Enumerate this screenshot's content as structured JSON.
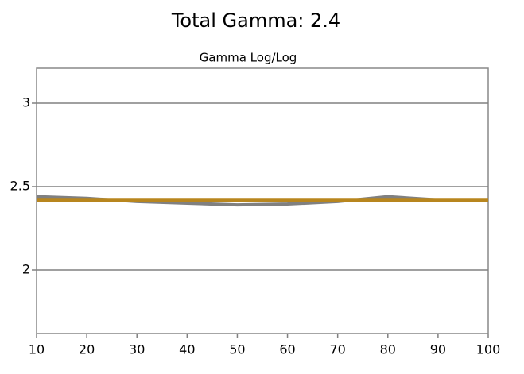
{
  "chart_data": {
    "type": "line",
    "title": "Total Gamma: 2.4",
    "subtitle": "Gamma Log/Log",
    "x": [
      10,
      20,
      30,
      40,
      50,
      60,
      70,
      80,
      90,
      100
    ],
    "series": [
      {
        "color": "#808080",
        "values": [
          2.44,
          2.43,
          2.41,
          2.4,
          2.39,
          2.395,
          2.41,
          2.44,
          2.42,
          2.42
        ]
      },
      {
        "color": "#b8861e",
        "values": [
          2.42,
          2.42,
          2.42,
          2.42,
          2.42,
          2.42,
          2.42,
          2.42,
          2.42,
          2.42
        ]
      }
    ],
    "xlim": [
      10,
      100
    ],
    "xticks": [
      10,
      20,
      30,
      40,
      50,
      60,
      70,
      80,
      90,
      100
    ],
    "ylim": [
      1.6,
      3.2
    ],
    "yticks": [
      2,
      2.5,
      3
    ],
    "grid": true
  }
}
